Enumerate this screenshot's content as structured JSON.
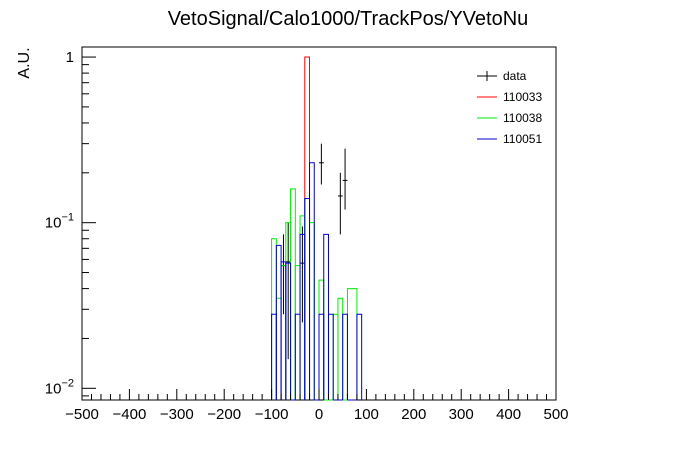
{
  "chart_data": {
    "type": "histogram",
    "title": "VetoSignal/Calo1000/TrackPos/YVetoNu",
    "xlabel": "",
    "ylabel": "A.U.",
    "xlim": [
      -500,
      500
    ],
    "ylim": [
      0.0085,
      1.15
    ],
    "yscale": "log",
    "grid": false,
    "legend_position": "top-right",
    "bin_width": 10,
    "x_ticks": [
      -500,
      -400,
      -300,
      -200,
      -100,
      0,
      100,
      200,
      300,
      400,
      500
    ],
    "y_ticks": [
      {
        "value": 0.01,
        "base": "10",
        "exp": "−2"
      },
      {
        "value": 0.1,
        "base": "10",
        "exp": "−1"
      },
      {
        "value": 1,
        "base": "1",
        "exp": ""
      }
    ],
    "series": [
      {
        "name": "data",
        "color": "#000000",
        "style": "points",
        "points": [
          {
            "x": -75,
            "y": 0.055,
            "lo": 0.028,
            "hi": 0.085
          },
          {
            "x": -65,
            "y": 0.058,
            "lo": 0.015,
            "hi": 0.1
          },
          {
            "x": -35,
            "y": 0.057,
            "lo": 0.025,
            "hi": 0.095
          },
          {
            "x": 5,
            "y": 0.23,
            "lo": 0.17,
            "hi": 0.3
          },
          {
            "x": 45,
            "y": 0.145,
            "lo": 0.085,
            "hi": 0.2
          },
          {
            "x": 55,
            "y": 0.18,
            "lo": 0.12,
            "hi": 0.28
          }
        ]
      },
      {
        "name": "110033",
        "color": "#ff0000",
        "style": "step",
        "bins": [
          {
            "lo": -30,
            "hi": -20,
            "y": 1.0
          }
        ]
      },
      {
        "name": "110038",
        "color": "#00ee00",
        "style": "step",
        "bins": [
          {
            "lo": -100,
            "hi": -90,
            "y": 0.08
          },
          {
            "lo": -90,
            "hi": -80,
            "y": 0.035
          },
          {
            "lo": -80,
            "hi": -70,
            "y": 0.055
          },
          {
            "lo": -70,
            "hi": -60,
            "y": 0.1
          },
          {
            "lo": -60,
            "hi": -50,
            "y": 0.16
          },
          {
            "lo": -50,
            "hi": -40,
            "y": 0.055
          },
          {
            "lo": -40,
            "hi": -30,
            "y": 0.11
          },
          {
            "lo": -30,
            "hi": -20,
            "y": 0.14
          },
          {
            "lo": -20,
            "hi": -10,
            "y": 0.1
          },
          {
            "lo": -10,
            "hi": 0,
            "y": 0.0085
          },
          {
            "lo": 0,
            "hi": 10,
            "y": 0.045
          },
          {
            "lo": 10,
            "hi": 20,
            "y": 0.0085
          },
          {
            "lo": 20,
            "hi": 30,
            "y": 0.0085
          },
          {
            "lo": 30,
            "hi": 40,
            "y": 0.028
          },
          {
            "lo": 40,
            "hi": 50,
            "y": 0.035
          },
          {
            "lo": 50,
            "hi": 60,
            "y": 0.0085
          },
          {
            "lo": 60,
            "hi": 80,
            "y": 0.04
          }
        ]
      },
      {
        "name": "110051",
        "color": "#0000cc",
        "style": "step",
        "bins": [
          {
            "lo": -100,
            "hi": -90,
            "y": 0.028
          },
          {
            "lo": -90,
            "hi": -80,
            "y": 0.073
          },
          {
            "lo": -80,
            "hi": -70,
            "y": 0.058
          },
          {
            "lo": -70,
            "hi": -60,
            "y": 0.057
          },
          {
            "lo": -60,
            "hi": -50,
            "y": 0.0085
          },
          {
            "lo": -50,
            "hi": -40,
            "y": 0.028
          },
          {
            "lo": -40,
            "hi": -30,
            "y": 0.085
          },
          {
            "lo": -30,
            "hi": -20,
            "y": 0.14
          },
          {
            "lo": -20,
            "hi": -10,
            "y": 0.23
          },
          {
            "lo": -10,
            "hi": 0,
            "y": 0.0085
          },
          {
            "lo": 0,
            "hi": 10,
            "y": 0.028
          },
          {
            "lo": 10,
            "hi": 20,
            "y": 0.085
          },
          {
            "lo": 20,
            "hi": 30,
            "y": 0.028
          },
          {
            "lo": 30,
            "hi": 40,
            "y": 0.0085
          },
          {
            "lo": 40,
            "hi": 50,
            "y": 0.0085
          },
          {
            "lo": 50,
            "hi": 60,
            "y": 0.028
          },
          {
            "lo": 60,
            "hi": 70,
            "y": 0.0085
          },
          {
            "lo": 70,
            "hi": 80,
            "y": 0.0085
          },
          {
            "lo": 80,
            "hi": 90,
            "y": 0.028
          }
        ]
      }
    ]
  }
}
